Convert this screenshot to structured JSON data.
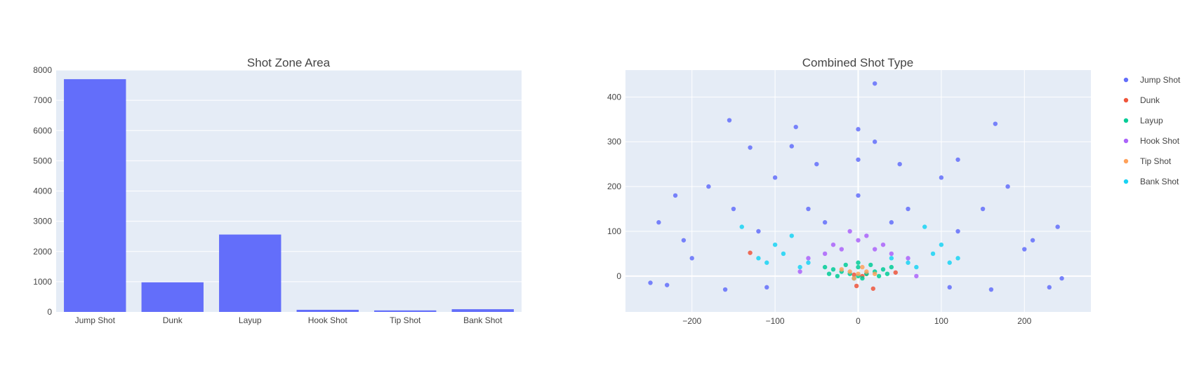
{
  "chart_data": [
    {
      "type": "bar",
      "title": "Shot Zone Area",
      "categories": [
        "Jump Shot",
        "Dunk",
        "Layup",
        "Hook Shot",
        "Tip Shot",
        "Bank Shot"
      ],
      "values": [
        7700,
        980,
        2560,
        70,
        50,
        90
      ],
      "ylim": [
        0,
        8000
      ],
      "yticks": [
        0,
        1000,
        2000,
        3000,
        4000,
        5000,
        6000,
        7000,
        8000
      ],
      "color": "#636efa",
      "grid": true
    },
    {
      "type": "scatter",
      "title": "Combined Shot Type",
      "xlim": [
        -280,
        280
      ],
      "ylim": [
        -80,
        460
      ],
      "xticks": [
        -200,
        -100,
        0,
        100,
        200
      ],
      "yticks": [
        0,
        100,
        200,
        300,
        400
      ],
      "grid": true,
      "legend_position": "right",
      "series": [
        {
          "name": "Jump Shot",
          "color": "#636efa",
          "points": [
            [
              20,
              430
            ],
            [
              -155,
              348
            ],
            [
              165,
              340
            ],
            [
              -75,
              333
            ],
            [
              0,
              328
            ],
            [
              -130,
              287
            ],
            [
              -80,
              290
            ],
            [
              20,
              300
            ],
            [
              120,
              260
            ],
            [
              -220,
              180
            ],
            [
              -240,
              120
            ],
            [
              240,
              110
            ],
            [
              -250,
              -15
            ],
            [
              245,
              -5
            ],
            [
              -200,
              40
            ],
            [
              200,
              60
            ],
            [
              -150,
              150
            ],
            [
              150,
              150
            ],
            [
              -100,
              220
            ],
            [
              100,
              220
            ],
            [
              0,
              260
            ],
            [
              -50,
              250
            ],
            [
              50,
              250
            ],
            [
              -180,
              200
            ],
            [
              180,
              200
            ],
            [
              -120,
              100
            ],
            [
              120,
              100
            ],
            [
              -60,
              150
            ],
            [
              60,
              150
            ],
            [
              0,
              180
            ],
            [
              -230,
              -20
            ],
            [
              230,
              -25
            ],
            [
              -160,
              -30
            ],
            [
              160,
              -30
            ],
            [
              -110,
              -25
            ],
            [
              110,
              -25
            ],
            [
              -40,
              120
            ],
            [
              40,
              120
            ],
            [
              -210,
              80
            ],
            [
              210,
              80
            ]
          ]
        },
        {
          "name": "Dunk",
          "color": "#ef553b",
          "points": [
            [
              -2,
              -22
            ],
            [
              18,
              -28
            ],
            [
              -130,
              52
            ],
            [
              5,
              0
            ],
            [
              10,
              5
            ],
            [
              -5,
              3
            ],
            [
              45,
              8
            ]
          ]
        },
        {
          "name": "Layup",
          "color": "#00cc96",
          "points": [
            [
              0,
              0
            ],
            [
              -10,
              5
            ],
            [
              10,
              5
            ],
            [
              -20,
              10
            ],
            [
              20,
              10
            ],
            [
              -30,
              15
            ],
            [
              30,
              15
            ],
            [
              0,
              20
            ],
            [
              -15,
              25
            ],
            [
              15,
              25
            ],
            [
              -25,
              0
            ],
            [
              25,
              0
            ],
            [
              -35,
              5
            ],
            [
              35,
              5
            ],
            [
              -5,
              -5
            ],
            [
              5,
              -5
            ],
            [
              0,
              30
            ],
            [
              -40,
              20
            ],
            [
              40,
              20
            ]
          ]
        },
        {
          "name": "Hook Shot",
          "color": "#ab63fa",
          "points": [
            [
              -20,
              60
            ],
            [
              20,
              60
            ],
            [
              -40,
              50
            ],
            [
              40,
              50
            ],
            [
              0,
              80
            ],
            [
              -10,
              100
            ],
            [
              10,
              90
            ],
            [
              -30,
              70
            ],
            [
              30,
              70
            ],
            [
              60,
              40
            ],
            [
              -60,
              40
            ],
            [
              70,
              0
            ],
            [
              -70,
              10
            ]
          ]
        },
        {
          "name": "Tip Shot",
          "color": "#ffa15a",
          "points": [
            [
              -10,
              10
            ],
            [
              10,
              10
            ],
            [
              0,
              5
            ],
            [
              -20,
              15
            ],
            [
              20,
              5
            ],
            [
              5,
              20
            ],
            [
              -5,
              -5
            ]
          ]
        },
        {
          "name": "Bank Shot",
          "color": "#19d3f3",
          "points": [
            [
              -60,
              30
            ],
            [
              60,
              30
            ],
            [
              -90,
              50
            ],
            [
              90,
              50
            ],
            [
              -120,
              40
            ],
            [
              120,
              40
            ],
            [
              -100,
              70
            ],
            [
              100,
              70
            ],
            [
              -140,
              110
            ],
            [
              80,
              110
            ],
            [
              -70,
              20
            ],
            [
              70,
              20
            ],
            [
              -110,
              30
            ],
            [
              110,
              30
            ],
            [
              -80,
              90
            ],
            [
              40,
              40
            ]
          ]
        }
      ]
    }
  ]
}
